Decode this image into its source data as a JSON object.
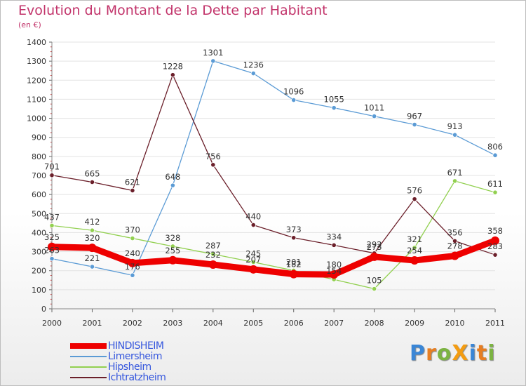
{
  "title": "Evolution du Montant de la Dette par Habitant",
  "subtitle": "(en €)",
  "logo": {
    "text": "ProXiti",
    "letter_colors": [
      "#3a86d6",
      "#e67e22",
      "#7cb342",
      "#f39c12",
      "#3a86d6",
      "#e67e22",
      "#7cb342"
    ]
  },
  "chart_data": {
    "type": "line",
    "x": [
      "2000",
      "2001",
      "2002",
      "2003",
      "2004",
      "2005",
      "2006",
      "2007",
      "2008",
      "2009",
      "2010",
      "2011"
    ],
    "ylim": [
      0,
      1400
    ],
    "yticks": [
      0,
      100,
      200,
      300,
      400,
      500,
      600,
      700,
      800,
      900,
      1000,
      1100,
      1200,
      1300,
      1400
    ],
    "grid": "horizontal",
    "legend_position": "bottom-left",
    "series": [
      {
        "name": "HINDISHEIM",
        "color": "#ee0000",
        "values": [
          325,
          320,
          240,
          255,
          232,
          207,
          182,
          180,
          273,
          254,
          278,
          358
        ],
        "labels": [
          "325",
          "320",
          "240",
          "255",
          "232",
          "207",
          "182",
          "180",
          "273",
          "254",
          "278",
          "358"
        ]
      },
      {
        "name": "Limersheim",
        "color": "#5b9bd5",
        "values": [
          263,
          221,
          176,
          648,
          1301,
          1236,
          1096,
          1055,
          1011,
          967,
          913,
          806
        ],
        "labels": [
          "263",
          "221",
          "176",
          "648",
          "1301",
          "1236",
          "1096",
          "1055",
          "1011",
          "967",
          "913",
          "806"
        ]
      },
      {
        "name": "Hipsheim",
        "color": "#92d050",
        "values": [
          437,
          412,
          370,
          328,
          287,
          245,
          201,
          154,
          105,
          321,
          671,
          611
        ],
        "labels": [
          "437",
          "412",
          "370",
          "328",
          "287",
          "245",
          "201",
          "154",
          "105",
          "321",
          "671",
          "611"
        ]
      },
      {
        "name": "Ichtratzheim",
        "color": "#6b1f2a",
        "values": [
          701,
          665,
          621,
          1228,
          756,
          440,
          373,
          334,
          292,
          576,
          356,
          283
        ],
        "labels": [
          "701",
          "665",
          "621",
          "1228",
          "756",
          "440",
          "373",
          "334",
          "292",
          "576",
          "356",
          "283"
        ]
      }
    ]
  }
}
